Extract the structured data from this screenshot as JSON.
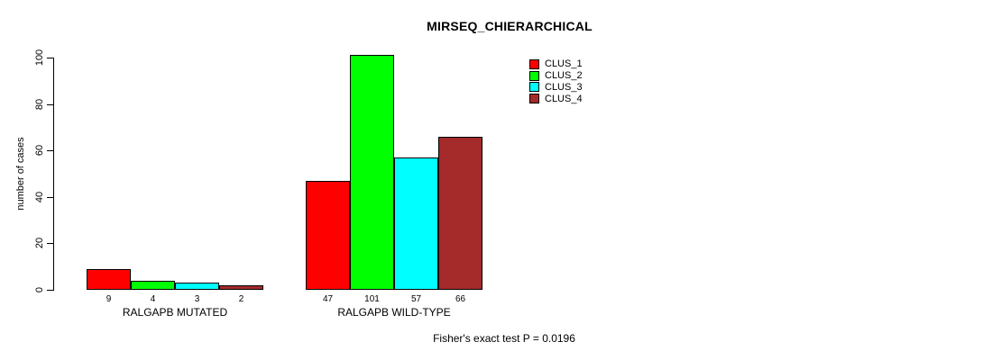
{
  "chart_data": {
    "type": "bar",
    "title": "MIRSEQ_CHIERARCHICAL",
    "ylabel": "number of cases",
    "xlabel": "",
    "ylim": [
      0,
      100
    ],
    "yticks": [
      0,
      20,
      40,
      60,
      80,
      100
    ],
    "grid": false,
    "legend_position": "top-right",
    "categories": [
      "RALGAPB MUTATED",
      "RALGAPB WILD-TYPE"
    ],
    "series": [
      {
        "name": "CLUS_1",
        "color": "#FF0000",
        "values": [
          9,
          47
        ]
      },
      {
        "name": "CLUS_2",
        "color": "#00FF00",
        "values": [
          4,
          101
        ]
      },
      {
        "name": "CLUS_3",
        "color": "#00FFFF",
        "values": [
          3,
          57
        ]
      },
      {
        "name": "CLUS_4",
        "color": "#A52A2A",
        "values": [
          2,
          66
        ]
      }
    ],
    "bar_value_labels": [
      [
        "9",
        "4",
        "3",
        "2"
      ],
      [
        "47",
        "101",
        "57",
        "66"
      ]
    ],
    "annotation": "Fisher's exact test P = 0.0196"
  }
}
